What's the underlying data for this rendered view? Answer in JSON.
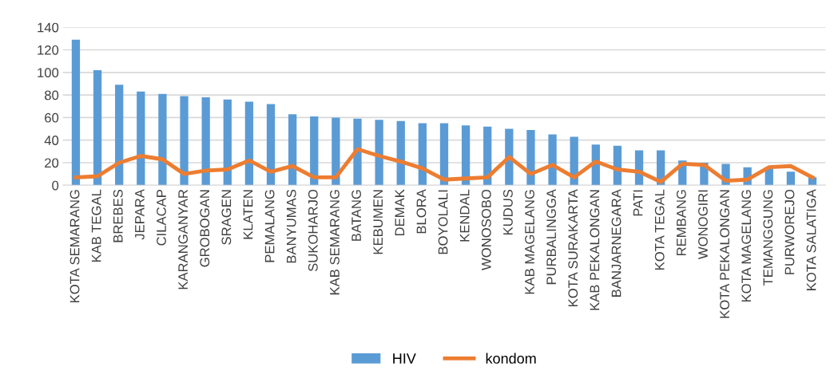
{
  "chart_data": {
    "type": "bar",
    "categories": [
      "KOTA SEMARANG",
      "KAB TEGAL",
      "BREBES",
      "JEPARA",
      "CILACAP",
      "KARANGANYAR",
      "GROBOGAN",
      "SRAGEN",
      "KLATEN",
      "PEMALANG",
      "BANYUMAS",
      "SUKOHARJO",
      "KAB SEMARANG",
      "BATANG",
      "KEBUMEN",
      "DEMAK",
      "BLORA",
      "BOYOLALI",
      "KENDAL",
      "WONOSOBO",
      "KUDUS",
      "KAB MAGELANG",
      "PURBALINGGA",
      "KOTA SURAKARTA",
      "KAB PEKALONGAN",
      "BANJARNEGARA",
      "PATI",
      "KOTA TEGAL",
      "REMBANG",
      "WONOGIRI",
      "KOTA PEKALONGAN",
      "KOTA MAGELANG",
      "TEMANGGUNG",
      "PURWOREJO",
      "KOTA SALATIGA"
    ],
    "series": [
      {
        "name": "HIV",
        "color": "#5b9bd5",
        "values": [
          129,
          102,
          89,
          83,
          81,
          79,
          78,
          76,
          74,
          72,
          63,
          61,
          60,
          59,
          58,
          57,
          55,
          55,
          53,
          52,
          50,
          49,
          45,
          43,
          36,
          35,
          31,
          31,
          22,
          20,
          19,
          16,
          16,
          12,
          7
        ]
      },
      {
        "name": "kondom",
        "type": "line",
        "color": "#ed7d31",
        "values": [
          7,
          8,
          20,
          26,
          23,
          10,
          13,
          14,
          22,
          12,
          17,
          7,
          7,
          32,
          26,
          21,
          15,
          5,
          6,
          7,
          25,
          10,
          18,
          7,
          21,
          14,
          12,
          3,
          19,
          18,
          4,
          5,
          16,
          17,
          7
        ]
      }
    ],
    "ylim": [
      0,
      140
    ],
    "yticks": [
      0,
      20,
      40,
      60,
      80,
      100,
      120,
      140
    ],
    "grid": "y",
    "legend": "bottom",
    "marker": "none",
    "line_style": "solid"
  }
}
